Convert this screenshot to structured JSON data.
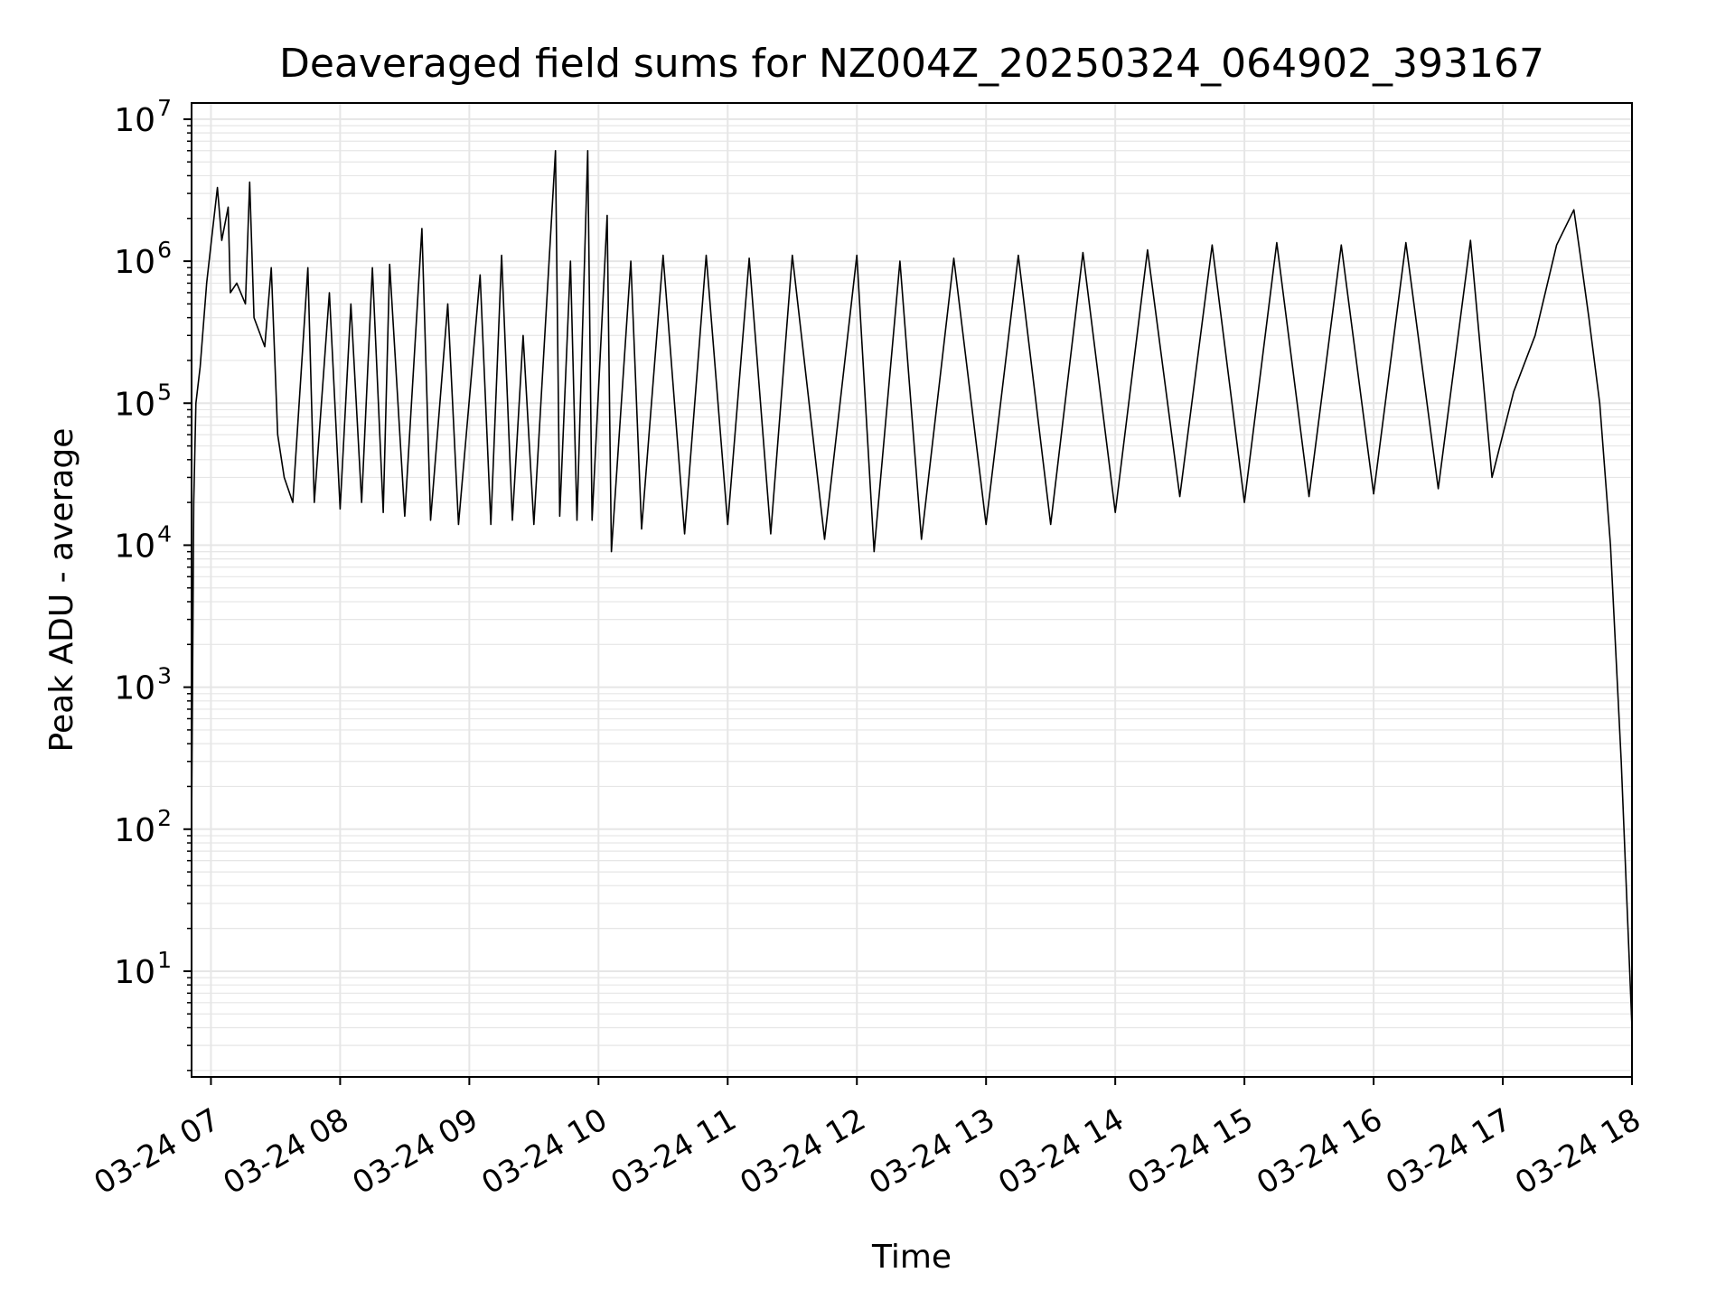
{
  "chart_data": {
    "type": "line",
    "title": "Deaveraged field sums for NZ004Z_20250324_064902_393167",
    "xlabel": "Time",
    "ylabel": "Peak ADU - average",
    "y_scale": "log",
    "ylim": [
      1.8,
      13000000
    ],
    "xlim": [
      "2025-03-24 06:51",
      "2025-03-24 18:00"
    ],
    "grid": true,
    "line_color": "#000000",
    "grid_color": "#e6e6e6",
    "x_ticks": [
      {
        "value": "2025-03-24 07:00",
        "label": "03-24 07"
      },
      {
        "value": "2025-03-24 08:00",
        "label": "03-24 08"
      },
      {
        "value": "2025-03-24 09:00",
        "label": "03-24 09"
      },
      {
        "value": "2025-03-24 10:00",
        "label": "03-24 10"
      },
      {
        "value": "2025-03-24 11:00",
        "label": "03-24 11"
      },
      {
        "value": "2025-03-24 12:00",
        "label": "03-24 12"
      },
      {
        "value": "2025-03-24 13:00",
        "label": "03-24 13"
      },
      {
        "value": "2025-03-24 14:00",
        "label": "03-24 14"
      },
      {
        "value": "2025-03-24 15:00",
        "label": "03-24 15"
      },
      {
        "value": "2025-03-24 16:00",
        "label": "03-24 16"
      },
      {
        "value": "2025-03-24 17:00",
        "label": "03-24 17"
      },
      {
        "value": "2025-03-24 18:00",
        "label": "03-24 18"
      }
    ],
    "y_ticks": [
      {
        "value": 10,
        "base": "10",
        "exp": "1"
      },
      {
        "value": 100,
        "base": "10",
        "exp": "2"
      },
      {
        "value": 1000,
        "base": "10",
        "exp": "3"
      },
      {
        "value": 10000,
        "base": "10",
        "exp": "4"
      },
      {
        "value": 100000,
        "base": "10",
        "exp": "5"
      },
      {
        "value": 1000000,
        "base": "10",
        "exp": "6"
      },
      {
        "value": 10000000,
        "base": "10",
        "exp": "7"
      }
    ],
    "series": [
      {
        "points": [
          [
            "2025-03-24 06:51",
            100
          ],
          [
            "2025-03-24 06:52",
            20000
          ],
          [
            "2025-03-24 06:53",
            100000
          ],
          [
            "2025-03-24 06:55",
            180000
          ],
          [
            "2025-03-24 06:58",
            700000
          ],
          [
            "2025-03-24 07:00",
            1300000
          ],
          [
            "2025-03-24 07:03",
            3300000
          ],
          [
            "2025-03-24 07:05",
            1400000
          ],
          [
            "2025-03-24 07:08",
            2400000
          ],
          [
            "2025-03-24 07:09",
            600000
          ],
          [
            "2025-03-24 07:12",
            700000
          ],
          [
            "2025-03-24 07:16",
            500000
          ],
          [
            "2025-03-24 07:18",
            3600000
          ],
          [
            "2025-03-24 07:20",
            400000
          ],
          [
            "2025-03-24 07:25",
            250000
          ],
          [
            "2025-03-24 07:28",
            900000
          ],
          [
            "2025-03-24 07:31",
            60000
          ],
          [
            "2025-03-24 07:34",
            30000
          ],
          [
            "2025-03-24 07:38",
            20000
          ],
          [
            "2025-03-24 07:45",
            900000
          ],
          [
            "2025-03-24 07:48",
            20000
          ],
          [
            "2025-03-24 07:55",
            600000
          ],
          [
            "2025-03-24 08:00",
            18000
          ],
          [
            "2025-03-24 08:05",
            500000
          ],
          [
            "2025-03-24 08:10",
            20000
          ],
          [
            "2025-03-24 08:15",
            900000
          ],
          [
            "2025-03-24 08:20",
            17000
          ],
          [
            "2025-03-24 08:23",
            950000
          ],
          [
            "2025-03-24 08:30",
            16000
          ],
          [
            "2025-03-24 08:38",
            1700000
          ],
          [
            "2025-03-24 08:42",
            15000
          ],
          [
            "2025-03-24 08:50",
            500000
          ],
          [
            "2025-03-24 08:55",
            14000
          ],
          [
            "2025-03-24 09:05",
            800000
          ],
          [
            "2025-03-24 09:10",
            14000
          ],
          [
            "2025-03-24 09:15",
            1100000
          ],
          [
            "2025-03-24 09:20",
            15000
          ],
          [
            "2025-03-24 09:25",
            300000
          ],
          [
            "2025-03-24 09:30",
            14000
          ],
          [
            "2025-03-24 09:40",
            6000000
          ],
          [
            "2025-03-24 09:42",
            16000
          ],
          [
            "2025-03-24 09:47",
            1000000
          ],
          [
            "2025-03-24 09:50",
            15000
          ],
          [
            "2025-03-24 09:55",
            6000000
          ],
          [
            "2025-03-24 09:57",
            15000
          ],
          [
            "2025-03-24 10:04",
            2100000
          ],
          [
            "2025-03-24 10:06",
            9000
          ],
          [
            "2025-03-24 10:15",
            1000000
          ],
          [
            "2025-03-24 10:20",
            13000
          ],
          [
            "2025-03-24 10:30",
            1100000
          ],
          [
            "2025-03-24 10:40",
            12000
          ],
          [
            "2025-03-24 10:50",
            1100000
          ],
          [
            "2025-03-24 11:00",
            14000
          ],
          [
            "2025-03-24 11:10",
            1050000
          ],
          [
            "2025-03-24 11:20",
            12000
          ],
          [
            "2025-03-24 11:30",
            1100000
          ],
          [
            "2025-03-24 11:45",
            11000
          ],
          [
            "2025-03-24 12:00",
            1100000
          ],
          [
            "2025-03-24 12:08",
            9000
          ],
          [
            "2025-03-24 12:20",
            1000000
          ],
          [
            "2025-03-24 12:30",
            11000
          ],
          [
            "2025-03-24 12:45",
            1050000
          ],
          [
            "2025-03-24 13:00",
            14000
          ],
          [
            "2025-03-24 13:15",
            1100000
          ],
          [
            "2025-03-24 13:30",
            14000
          ],
          [
            "2025-03-24 13:45",
            1150000
          ],
          [
            "2025-03-24 14:00",
            17000
          ],
          [
            "2025-03-24 14:15",
            1200000
          ],
          [
            "2025-03-24 14:30",
            22000
          ],
          [
            "2025-03-24 14:45",
            1300000
          ],
          [
            "2025-03-24 15:00",
            20000
          ],
          [
            "2025-03-24 15:15",
            1350000
          ],
          [
            "2025-03-24 15:30",
            22000
          ],
          [
            "2025-03-24 15:45",
            1300000
          ],
          [
            "2025-03-24 16:00",
            23000
          ],
          [
            "2025-03-24 16:15",
            1350000
          ],
          [
            "2025-03-24 16:30",
            25000
          ],
          [
            "2025-03-24 16:45",
            1400000
          ],
          [
            "2025-03-24 16:55",
            30000
          ],
          [
            "2025-03-24 17:05",
            120000
          ],
          [
            "2025-03-24 17:15",
            300000
          ],
          [
            "2025-03-24 17:25",
            1300000
          ],
          [
            "2025-03-24 17:33",
            2300000
          ],
          [
            "2025-03-24 17:36",
            1100000
          ],
          [
            "2025-03-24 17:40",
            400000
          ],
          [
            "2025-03-24 17:45",
            100000
          ],
          [
            "2025-03-24 17:50",
            10000
          ],
          [
            "2025-03-24 17:55",
            300
          ],
          [
            "2025-03-24 18:00",
            4
          ]
        ]
      }
    ]
  }
}
